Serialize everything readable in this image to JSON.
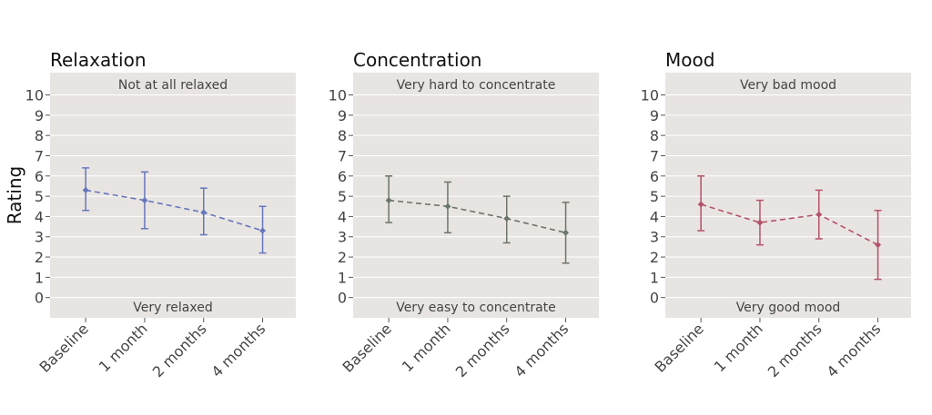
{
  "y_axis_title": "Rating",
  "chart_data": [
    {
      "type": "line",
      "title": "Relaxation",
      "top_note": "Not at all relaxed",
      "bottom_note": "Very relaxed",
      "categories": [
        "Baseline",
        "1 month",
        "2 months",
        "4 months"
      ],
      "yticks": [
        0,
        1,
        2,
        3,
        4,
        5,
        6,
        7,
        8,
        9,
        10
      ],
      "ylim": [
        -1,
        11.1
      ],
      "series": [
        {
          "values": [
            5.3,
            4.8,
            4.2,
            3.3
          ],
          "lower": [
            4.3,
            3.4,
            3.1,
            2.2
          ],
          "upper": [
            6.4,
            6.2,
            5.4,
            4.5
          ],
          "color": "#6677bb",
          "line_style": "dashed"
        }
      ],
      "background": "#e8e4e2",
      "grid": true
    },
    {
      "type": "line",
      "title": "Concentration",
      "top_note": "Very hard to concentrate",
      "bottom_note": "Very easy to concentrate",
      "categories": [
        "Baseline",
        "1 month",
        "2 months",
        "4 months"
      ],
      "yticks": [
        0,
        1,
        2,
        3,
        4,
        5,
        6,
        7,
        8,
        9,
        10
      ],
      "ylim": [
        -1,
        11.1
      ],
      "series": [
        {
          "values": [
            4.8,
            4.5,
            3.9,
            3.2
          ],
          "lower": [
            3.7,
            3.2,
            2.7,
            1.7
          ],
          "upper": [
            6.0,
            5.7,
            5.0,
            4.7
          ],
          "color": "#6b7568",
          "line_style": "dashed"
        }
      ],
      "background": "#e8e4e2",
      "grid": true
    },
    {
      "type": "line",
      "title": "Mood",
      "top_note": "Very bad mood",
      "bottom_note": "Very good mood",
      "categories": [
        "Baseline",
        "1 month",
        "2 months",
        "4 months"
      ],
      "yticks": [
        0,
        1,
        2,
        3,
        4,
        5,
        6,
        7,
        8,
        9,
        10
      ],
      "ylim": [
        -1,
        11.1
      ],
      "series": [
        {
          "values": [
            4.6,
            3.7,
            4.1,
            2.6
          ],
          "lower": [
            3.3,
            2.6,
            2.9,
            0.9
          ],
          "upper": [
            6.0,
            4.8,
            5.3,
            4.3
          ],
          "color": "#b5526a",
          "line_style": "dashed"
        }
      ],
      "background": "#e8e4e2",
      "grid": true
    }
  ]
}
